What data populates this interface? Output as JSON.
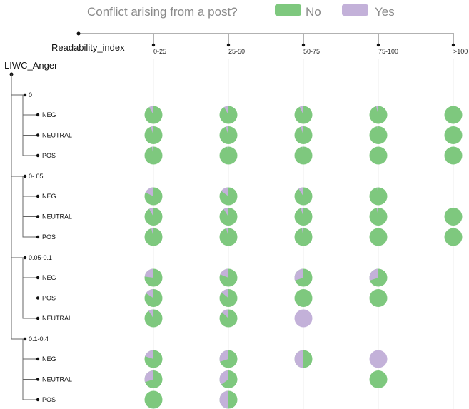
{
  "chart_data": {
    "type": "pie",
    "title": "",
    "legend": {
      "title": "Conflict arising from a post?",
      "items": [
        {
          "label": "No",
          "color": "#7ec87e"
        },
        {
          "label": "Yes",
          "color": "#c3b1d9"
        }
      ]
    },
    "column_axis_label": "Readability_index",
    "columns": [
      "0-25",
      "25-50",
      "50-75",
      "75-100",
      ">100"
    ],
    "root_label": "LIWC_Anger",
    "value_meaning": "fraction of posts with conflict (Yes); remainder is No",
    "groups": [
      {
        "label": "0",
        "rows": [
          {
            "label": "NEG",
            "yes": [
              0.08,
              0.08,
              0.07,
              0.04,
              0.0
            ]
          },
          {
            "label": "NEUTRAL",
            "yes": [
              0.05,
              0.05,
              0.05,
              0.02,
              0.0
            ]
          },
          {
            "label": "POS",
            "yes": [
              0.03,
              0.02,
              0.02,
              0.01,
              0.0
            ]
          }
        ]
      },
      {
        "label": "0-.05",
        "rows": [
          {
            "label": "NEG",
            "yes": [
              0.18,
              0.15,
              0.09,
              0.02,
              null
            ]
          },
          {
            "label": "NEUTRAL",
            "yes": [
              0.08,
              0.09,
              0.05,
              0.03,
              0.0
            ]
          },
          {
            "label": "POS",
            "yes": [
              0.04,
              0.04,
              0.03,
              0.01,
              0.0
            ]
          }
        ]
      },
      {
        "label": "0.05-0.1",
        "rows": [
          {
            "label": "NEG",
            "yes": [
              0.23,
              0.19,
              0.3,
              0.3,
              null
            ]
          },
          {
            "label": "POS",
            "yes": [
              0.16,
              0.14,
              0.0,
              0.0,
              null
            ]
          },
          {
            "label": "NEUTRAL",
            "yes": [
              0.09,
              0.13,
              1.0,
              null,
              null
            ]
          }
        ]
      },
      {
        "label": "0.1-0.4",
        "rows": [
          {
            "label": "NEG",
            "yes": [
              0.2,
              0.3,
              0.5,
              1.0,
              null
            ]
          },
          {
            "label": "NEUTRAL",
            "yes": [
              0.3,
              0.35,
              null,
              0.0,
              null
            ]
          },
          {
            "label": "POS",
            "yes": [
              0.0,
              0.5,
              null,
              null,
              null
            ]
          }
        ]
      }
    ]
  }
}
